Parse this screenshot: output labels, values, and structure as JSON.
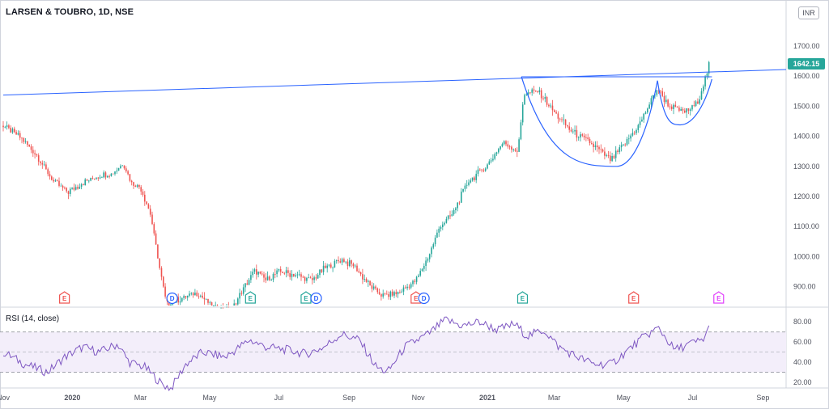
{
  "header": {
    "title": "LARSEN & TOUBRO, 1D, NSE",
    "currency": "INR",
    "last_price": "1642.15"
  },
  "rsi_pane": {
    "title": "RSI (14, close)"
  },
  "colors": {
    "up": "#26a69a",
    "down": "#ef5350",
    "trendline": "#2962ff",
    "rsi_line": "#7e57c2",
    "rsi_band": "#f3eefa",
    "earnings": "#ef5350",
    "earnings_alt": "#26a69a",
    "dividend": "#2962ff",
    "earnings_future": "#e040fb"
  },
  "chart_data": [
    {
      "type": "candlestick",
      "title": "LARSEN & TOUBRO, 1D, NSE",
      "ylabel": "INR",
      "ylim": [
        860,
        1760
      ],
      "y_ticks": [
        900,
        1000,
        1100,
        1200,
        1300,
        1400,
        1500,
        1600,
        1700
      ],
      "x_ticks": [
        "Nov",
        "2020",
        "Mar",
        "May",
        "Jul",
        "Sep",
        "Nov",
        "2021",
        "Mar",
        "May",
        "Jul",
        "Sep"
      ],
      "x_range": [
        "2019-11-01",
        "2021-09-15"
      ],
      "last_price": 1642.15,
      "price_path": [
        [
          "2019-11-01",
          1435
        ],
        [
          "2019-11-15",
          1400
        ],
        [
          "2019-12-01",
          1335
        ],
        [
          "2019-12-15",
          1250
        ],
        [
          "2019-12-28",
          1215
        ],
        [
          "2020-01-10",
          1245
        ],
        [
          "2020-01-25",
          1270
        ],
        [
          "2020-02-05",
          1275
        ],
        [
          "2020-02-15",
          1310
        ],
        [
          "2020-02-22",
          1245
        ],
        [
          "2020-03-01",
          1230
        ],
        [
          "2020-03-10",
          1140
        ],
        [
          "2020-03-18",
          960
        ],
        [
          "2020-03-24",
          840
        ],
        [
          "2020-04-05",
          860
        ],
        [
          "2020-04-20",
          880
        ],
        [
          "2020-05-05",
          830
        ],
        [
          "2020-05-20",
          820
        ],
        [
          "2020-06-01",
          900
        ],
        [
          "2020-06-10",
          955
        ],
        [
          "2020-06-20",
          920
        ],
        [
          "2020-07-01",
          950
        ],
        [
          "2020-07-15",
          940
        ],
        [
          "2020-07-30",
          920
        ],
        [
          "2020-08-10",
          960
        ],
        [
          "2020-08-25",
          990
        ],
        [
          "2020-09-05",
          970
        ],
        [
          "2020-09-20",
          900
        ],
        [
          "2020-10-01",
          870
        ],
        [
          "2020-10-15",
          880
        ],
        [
          "2020-10-30",
          920
        ],
        [
          "2020-11-10",
          1000
        ],
        [
          "2020-11-20",
          1100
        ],
        [
          "2020-12-01",
          1140
        ],
        [
          "2020-12-15",
          1250
        ],
        [
          "2020-12-31",
          1300
        ],
        [
          "2021-01-15",
          1380
        ],
        [
          "2021-01-28",
          1350
        ],
        [
          "2021-02-02",
          1540
        ],
        [
          "2021-02-15",
          1550
        ],
        [
          "2021-03-01",
          1480
        ],
        [
          "2021-03-15",
          1420
        ],
        [
          "2021-04-01",
          1380
        ],
        [
          "2021-04-20",
          1320
        ],
        [
          "2021-05-01",
          1370
        ],
        [
          "2021-05-15",
          1440
        ],
        [
          "2021-05-31",
          1560
        ],
        [
          "2021-06-10",
          1500
        ],
        [
          "2021-06-25",
          1480
        ],
        [
          "2021-07-05",
          1510
        ],
        [
          "2021-07-12",
          1590
        ],
        [
          "2021-07-16",
          1642
        ]
      ],
      "annotations": {
        "trendline": [
          [
            "2019-11-01",
            1537
          ],
          [
            "2021-09-15",
            1622
          ]
        ],
        "rim_line": [
          [
            "2021-01-31",
            1598
          ],
          [
            "2021-07-18",
            1598
          ]
        ],
        "cup": {
          "left": [
            "2021-01-31",
            1598
          ],
          "bottom": [
            "2021-04-25",
            1300
          ],
          "right": [
            "2021-05-31",
            1585
          ]
        },
        "handle": {
          "left": [
            "2021-05-31",
            1585
          ],
          "bottom": [
            "2021-06-20",
            1438
          ],
          "right": [
            "2021-07-18",
            1590
          ]
        }
      },
      "events": [
        {
          "label": "E",
          "date": "2019-12-25",
          "kind": "earnings"
        },
        {
          "label": "D",
          "date": "2020-03-29",
          "kind": "dividend"
        },
        {
          "label": "E",
          "date": "2020-06-06",
          "kind": "earnings_alt"
        },
        {
          "label": "E",
          "date": "2020-07-25",
          "kind": "earnings_alt"
        },
        {
          "label": "D",
          "date": "2020-08-03",
          "kind": "dividend"
        },
        {
          "label": "E",
          "date": "2020-10-30",
          "kind": "earnings"
        },
        {
          "label": "D",
          "date": "2020-11-06",
          "kind": "dividend"
        },
        {
          "label": "E",
          "date": "2021-02-01",
          "kind": "earnings_alt"
        },
        {
          "label": "E",
          "date": "2021-05-10",
          "kind": "earnings"
        },
        {
          "label": "E",
          "date": "2021-07-24",
          "kind": "earnings_future"
        }
      ]
    },
    {
      "type": "line",
      "title": "RSI (14, close)",
      "ylim": [
        10,
        90
      ],
      "y_ticks": [
        20,
        40,
        60,
        80
      ],
      "levels": [
        30,
        50,
        70
      ],
      "rsi_path": [
        [
          "2019-11-01",
          50
        ],
        [
          "2019-11-20",
          38
        ],
        [
          "2019-12-10",
          30
        ],
        [
          "2019-12-25",
          45
        ],
        [
          "2020-01-10",
          55
        ],
        [
          "2020-01-25",
          50
        ],
        [
          "2020-02-10",
          58
        ],
        [
          "2020-02-20",
          40
        ],
        [
          "2020-03-05",
          35
        ],
        [
          "2020-03-20",
          18
        ],
        [
          "2020-03-28",
          14
        ],
        [
          "2020-04-10",
          38
        ],
        [
          "2020-04-25",
          50
        ],
        [
          "2020-05-15",
          45
        ],
        [
          "2020-06-05",
          62
        ],
        [
          "2020-06-20",
          55
        ],
        [
          "2020-07-10",
          52
        ],
        [
          "2020-07-25",
          48
        ],
        [
          "2020-08-10",
          55
        ],
        [
          "2020-08-25",
          68
        ],
        [
          "2020-09-10",
          62
        ],
        [
          "2020-09-25",
          35
        ],
        [
          "2020-10-05",
          30
        ],
        [
          "2020-10-20",
          55
        ],
        [
          "2020-11-10",
          68
        ],
        [
          "2020-11-25",
          82
        ],
        [
          "2020-12-10",
          76
        ],
        [
          "2020-12-25",
          80
        ],
        [
          "2021-01-10",
          72
        ],
        [
          "2021-01-25",
          78
        ],
        [
          "2021-02-05",
          66
        ],
        [
          "2021-02-20",
          72
        ],
        [
          "2021-03-05",
          55
        ],
        [
          "2021-03-20",
          46
        ],
        [
          "2021-04-05",
          38
        ],
        [
          "2021-04-20",
          38
        ],
        [
          "2021-05-05",
          52
        ],
        [
          "2021-05-20",
          66
        ],
        [
          "2021-06-01",
          74
        ],
        [
          "2021-06-15",
          52
        ],
        [
          "2021-06-28",
          58
        ],
        [
          "2021-07-10",
          62
        ],
        [
          "2021-07-16",
          75
        ]
      ]
    }
  ]
}
